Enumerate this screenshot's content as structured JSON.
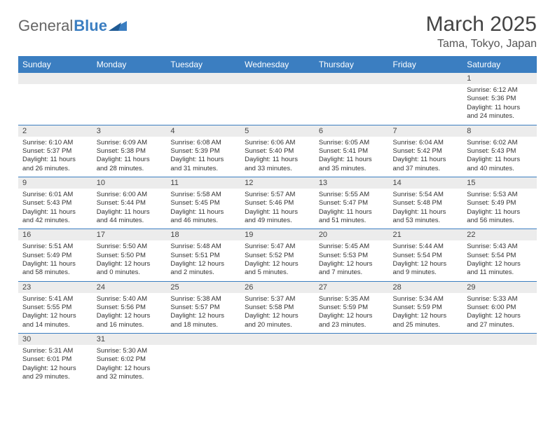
{
  "logo": {
    "general": "General",
    "blue": "Blue"
  },
  "header": {
    "month_title": "March 2025",
    "location": "Tama, Tokyo, Japan"
  },
  "colors": {
    "header_bg": "#3b7ec1",
    "header_text": "#ffffff",
    "daynum_bg": "#ececec",
    "border": "#3b7ec1"
  },
  "weekdays": [
    "Sunday",
    "Monday",
    "Tuesday",
    "Wednesday",
    "Thursday",
    "Friday",
    "Saturday"
  ],
  "weeks": [
    [
      null,
      null,
      null,
      null,
      null,
      null,
      {
        "n": "1",
        "sr": "Sunrise: 6:12 AM",
        "ss": "Sunset: 5:36 PM",
        "dl": "Daylight: 11 hours and 24 minutes."
      }
    ],
    [
      {
        "n": "2",
        "sr": "Sunrise: 6:10 AM",
        "ss": "Sunset: 5:37 PM",
        "dl": "Daylight: 11 hours and 26 minutes."
      },
      {
        "n": "3",
        "sr": "Sunrise: 6:09 AM",
        "ss": "Sunset: 5:38 PM",
        "dl": "Daylight: 11 hours and 28 minutes."
      },
      {
        "n": "4",
        "sr": "Sunrise: 6:08 AM",
        "ss": "Sunset: 5:39 PM",
        "dl": "Daylight: 11 hours and 31 minutes."
      },
      {
        "n": "5",
        "sr": "Sunrise: 6:06 AM",
        "ss": "Sunset: 5:40 PM",
        "dl": "Daylight: 11 hours and 33 minutes."
      },
      {
        "n": "6",
        "sr": "Sunrise: 6:05 AM",
        "ss": "Sunset: 5:41 PM",
        "dl": "Daylight: 11 hours and 35 minutes."
      },
      {
        "n": "7",
        "sr": "Sunrise: 6:04 AM",
        "ss": "Sunset: 5:42 PM",
        "dl": "Daylight: 11 hours and 37 minutes."
      },
      {
        "n": "8",
        "sr": "Sunrise: 6:02 AM",
        "ss": "Sunset: 5:43 PM",
        "dl": "Daylight: 11 hours and 40 minutes."
      }
    ],
    [
      {
        "n": "9",
        "sr": "Sunrise: 6:01 AM",
        "ss": "Sunset: 5:43 PM",
        "dl": "Daylight: 11 hours and 42 minutes."
      },
      {
        "n": "10",
        "sr": "Sunrise: 6:00 AM",
        "ss": "Sunset: 5:44 PM",
        "dl": "Daylight: 11 hours and 44 minutes."
      },
      {
        "n": "11",
        "sr": "Sunrise: 5:58 AM",
        "ss": "Sunset: 5:45 PM",
        "dl": "Daylight: 11 hours and 46 minutes."
      },
      {
        "n": "12",
        "sr": "Sunrise: 5:57 AM",
        "ss": "Sunset: 5:46 PM",
        "dl": "Daylight: 11 hours and 49 minutes."
      },
      {
        "n": "13",
        "sr": "Sunrise: 5:55 AM",
        "ss": "Sunset: 5:47 PM",
        "dl": "Daylight: 11 hours and 51 minutes."
      },
      {
        "n": "14",
        "sr": "Sunrise: 5:54 AM",
        "ss": "Sunset: 5:48 PM",
        "dl": "Daylight: 11 hours and 53 minutes."
      },
      {
        "n": "15",
        "sr": "Sunrise: 5:53 AM",
        "ss": "Sunset: 5:49 PM",
        "dl": "Daylight: 11 hours and 56 minutes."
      }
    ],
    [
      {
        "n": "16",
        "sr": "Sunrise: 5:51 AM",
        "ss": "Sunset: 5:49 PM",
        "dl": "Daylight: 11 hours and 58 minutes."
      },
      {
        "n": "17",
        "sr": "Sunrise: 5:50 AM",
        "ss": "Sunset: 5:50 PM",
        "dl": "Daylight: 12 hours and 0 minutes."
      },
      {
        "n": "18",
        "sr": "Sunrise: 5:48 AM",
        "ss": "Sunset: 5:51 PM",
        "dl": "Daylight: 12 hours and 2 minutes."
      },
      {
        "n": "19",
        "sr": "Sunrise: 5:47 AM",
        "ss": "Sunset: 5:52 PM",
        "dl": "Daylight: 12 hours and 5 minutes."
      },
      {
        "n": "20",
        "sr": "Sunrise: 5:45 AM",
        "ss": "Sunset: 5:53 PM",
        "dl": "Daylight: 12 hours and 7 minutes."
      },
      {
        "n": "21",
        "sr": "Sunrise: 5:44 AM",
        "ss": "Sunset: 5:54 PM",
        "dl": "Daylight: 12 hours and 9 minutes."
      },
      {
        "n": "22",
        "sr": "Sunrise: 5:43 AM",
        "ss": "Sunset: 5:54 PM",
        "dl": "Daylight: 12 hours and 11 minutes."
      }
    ],
    [
      {
        "n": "23",
        "sr": "Sunrise: 5:41 AM",
        "ss": "Sunset: 5:55 PM",
        "dl": "Daylight: 12 hours and 14 minutes."
      },
      {
        "n": "24",
        "sr": "Sunrise: 5:40 AM",
        "ss": "Sunset: 5:56 PM",
        "dl": "Daylight: 12 hours and 16 minutes."
      },
      {
        "n": "25",
        "sr": "Sunrise: 5:38 AM",
        "ss": "Sunset: 5:57 PM",
        "dl": "Daylight: 12 hours and 18 minutes."
      },
      {
        "n": "26",
        "sr": "Sunrise: 5:37 AM",
        "ss": "Sunset: 5:58 PM",
        "dl": "Daylight: 12 hours and 20 minutes."
      },
      {
        "n": "27",
        "sr": "Sunrise: 5:35 AM",
        "ss": "Sunset: 5:59 PM",
        "dl": "Daylight: 12 hours and 23 minutes."
      },
      {
        "n": "28",
        "sr": "Sunrise: 5:34 AM",
        "ss": "Sunset: 5:59 PM",
        "dl": "Daylight: 12 hours and 25 minutes."
      },
      {
        "n": "29",
        "sr": "Sunrise: 5:33 AM",
        "ss": "Sunset: 6:00 PM",
        "dl": "Daylight: 12 hours and 27 minutes."
      }
    ],
    [
      {
        "n": "30",
        "sr": "Sunrise: 5:31 AM",
        "ss": "Sunset: 6:01 PM",
        "dl": "Daylight: 12 hours and 29 minutes."
      },
      {
        "n": "31",
        "sr": "Sunrise: 5:30 AM",
        "ss": "Sunset: 6:02 PM",
        "dl": "Daylight: 12 hours and 32 minutes."
      },
      null,
      null,
      null,
      null,
      null
    ]
  ]
}
